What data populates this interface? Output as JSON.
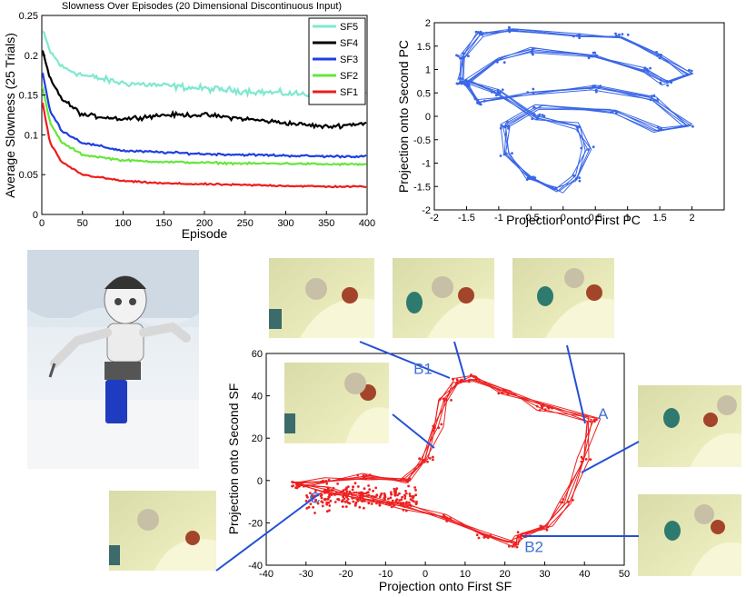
{
  "chart_data": [
    {
      "type": "line",
      "title": "Slowness Over Episodes (20 Dimensional Discontinuous Input)",
      "xlabel": "Episode",
      "ylabel": "Average Slowness (25 Trials)",
      "xlim": [
        0,
        400
      ],
      "ylim": [
        0,
        0.25
      ],
      "xticks": [
        0,
        50,
        100,
        150,
        200,
        250,
        300,
        350,
        400
      ],
      "yticks": [
        0,
        0.05,
        0.1,
        0.15,
        0.2,
        0.25
      ],
      "ytick_labels": [
        "0",
        "0.05",
        "0.1",
        "0.15",
        "0.2",
        "0.25"
      ],
      "grid": false,
      "legend_position": "top-right",
      "series": [
        {
          "name": "SF5",
          "color": "#7fe8d0",
          "start": 0.23,
          "end": 0.15,
          "tau": 45,
          "noise": 0.006,
          "points": [
            [
              1,
              0.23
            ],
            [
              10,
              0.205
            ],
            [
              25,
              0.185
            ],
            [
              50,
              0.175
            ],
            [
              100,
              0.165
            ],
            [
              150,
              0.162
            ],
            [
              200,
              0.158
            ],
            [
              250,
              0.155
            ],
            [
              300,
              0.152
            ],
            [
              350,
              0.15
            ],
            [
              400,
              0.152
            ]
          ]
        },
        {
          "name": "SF4",
          "color": "#000000",
          "start": 0.205,
          "end": 0.115,
          "tau": 30,
          "noise": 0.004,
          "points": [
            [
              1,
              0.205
            ],
            [
              10,
              0.17
            ],
            [
              25,
              0.145
            ],
            [
              50,
              0.125
            ],
            [
              100,
              0.12
            ],
            [
              150,
              0.125
            ],
            [
              200,
              0.125
            ],
            [
              250,
              0.12
            ],
            [
              300,
              0.115
            ],
            [
              350,
              0.11
            ],
            [
              400,
              0.115
            ]
          ]
        },
        {
          "name": "SF3",
          "color": "#1f3fe0",
          "start": 0.178,
          "end": 0.073,
          "tau": 28,
          "noise": 0.002,
          "points": [
            [
              1,
              0.178
            ],
            [
              10,
              0.13
            ],
            [
              25,
              0.105
            ],
            [
              50,
              0.09
            ],
            [
              100,
              0.08
            ],
            [
              150,
              0.078
            ],
            [
              200,
              0.076
            ],
            [
              250,
              0.075
            ],
            [
              300,
              0.074
            ],
            [
              350,
              0.073
            ],
            [
              400,
              0.073
            ]
          ]
        },
        {
          "name": "SF2",
          "color": "#66e63a",
          "start": 0.16,
          "end": 0.063,
          "tau": 25,
          "noise": 0.0018,
          "points": [
            [
              1,
              0.16
            ],
            [
              10,
              0.115
            ],
            [
              25,
              0.09
            ],
            [
              50,
              0.075
            ],
            [
              100,
              0.068
            ],
            [
              150,
              0.066
            ],
            [
              200,
              0.065
            ],
            [
              250,
              0.064
            ],
            [
              300,
              0.064
            ],
            [
              350,
              0.063
            ],
            [
              400,
              0.063
            ]
          ]
        },
        {
          "name": "SF1",
          "color": "#ee1c1c",
          "start": 0.14,
          "end": 0.035,
          "tau": 28,
          "noise": 0.0015,
          "points": [
            [
              1,
              0.14
            ],
            [
              10,
              0.09
            ],
            [
              25,
              0.065
            ],
            [
              50,
              0.05
            ],
            [
              100,
              0.042
            ],
            [
              150,
              0.039
            ],
            [
              200,
              0.038
            ],
            [
              250,
              0.037
            ],
            [
              300,
              0.036
            ],
            [
              350,
              0.035
            ],
            [
              400,
              0.035
            ]
          ]
        }
      ]
    },
    {
      "type": "scatter",
      "title": "",
      "xlabel": "Projection onto First PC",
      "ylabel": "Projection onto Second PC",
      "xlim": [
        -2,
        2.5
      ],
      "ylim": [
        -2,
        2
      ],
      "xticks": [
        -2,
        -1.5,
        -1,
        -0.5,
        0,
        0.5,
        1,
        1.5,
        2
      ],
      "yticks": [
        -2,
        -1.5,
        -1,
        -0.5,
        0,
        0.5,
        1,
        1.5,
        2
      ],
      "marker_color": "#3a66e6",
      "grid": false
    },
    {
      "type": "scatter",
      "title": "",
      "xlabel": "Projection onto First SF",
      "ylabel": "Projection onto Second SF",
      "xlim": [
        -40,
        50
      ],
      "ylim": [
        -40,
        60
      ],
      "xticks": [
        -40,
        -30,
        -20,
        -10,
        0,
        10,
        20,
        30,
        40,
        50
      ],
      "yticks": [
        -40,
        -20,
        0,
        20,
        40,
        60
      ],
      "marker_color": "#ee2020",
      "grid": false,
      "annotations": [
        {
          "label": "A",
          "x": 42,
          "y": 29
        },
        {
          "label": "B1",
          "x": 8,
          "y": 47
        },
        {
          "label": "B2",
          "x": 24,
          "y": -26
        },
        {
          "label": "C",
          "x": -31,
          "y": -2
        }
      ]
    }
  ],
  "colors": {
    "photo_bg": "#e8eab8",
    "table": "#f4f4c8",
    "connector": "#2450d6",
    "robot_cup": "#1f3cc0"
  }
}
